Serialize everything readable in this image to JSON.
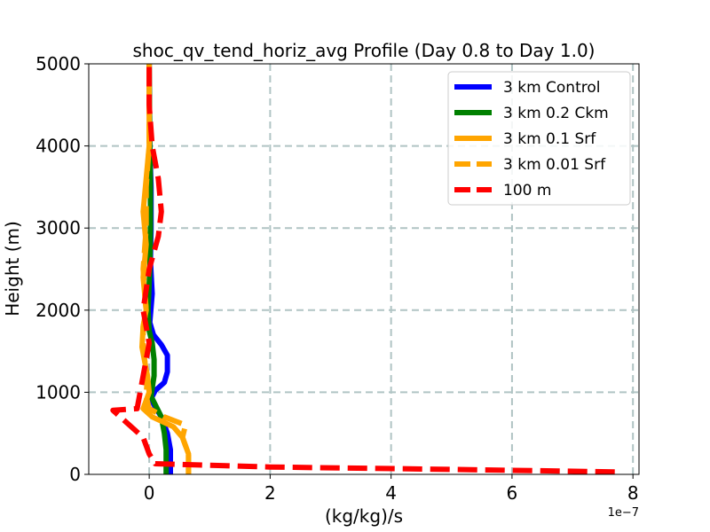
{
  "chart_data": {
    "type": "line",
    "title": "shoc_qv_tend_horiz_avg Profile (Day 0.8 to Day 1.0)",
    "xlabel": "(kg/kg)/s",
    "ylabel": "Height (m)",
    "x_offset_label": "1e−7",
    "xlim": [
      -1e-07,
      8.1e-07
    ],
    "ylim": [
      0,
      5000
    ],
    "xticks": [
      0,
      2e-07,
      4e-07,
      6e-07,
      8e-07
    ],
    "xtick_labels": [
      "0",
      "2",
      "4",
      "6",
      "8"
    ],
    "yticks": [
      0,
      1000,
      2000,
      3000,
      4000,
      5000
    ],
    "ytick_labels": [
      "0",
      "1000",
      "2000",
      "3000",
      "4000",
      "5000"
    ],
    "grid": true,
    "legend_position": "top-right",
    "series": [
      {
        "name": "3 km Control",
        "color": "#0000ff",
        "dash": "solid",
        "points": [
          [
            3.5e-08,
            0
          ],
          [
            3.5e-08,
            300
          ],
          [
            3e-08,
            500
          ],
          [
            2e-08,
            700
          ],
          [
            1e-08,
            820
          ],
          [
            3e-09,
            920
          ],
          [
            1e-08,
            1020
          ],
          [
            2.5e-08,
            1120
          ],
          [
            3e-08,
            1250
          ],
          [
            3e-08,
            1450
          ],
          [
            2e-08,
            1580
          ],
          [
            7e-09,
            1700
          ],
          [
            1e-09,
            1850
          ],
          [
            5e-09,
            2200
          ],
          [
            2e-09,
            2600
          ],
          [
            3e-09,
            3000
          ],
          [
            3e-09,
            3500
          ],
          [
            1e-09,
            4000
          ],
          [
            0,
            5000
          ]
        ]
      },
      {
        "name": "3 km 0.2 Ckm",
        "color": "#008000",
        "dash": "solid",
        "points": [
          [
            2.8e-08,
            0
          ],
          [
            2.8e-08,
            300
          ],
          [
            2.5e-08,
            500
          ],
          [
            2e-08,
            700
          ],
          [
            1e-08,
            850
          ],
          [
            3e-09,
            950
          ],
          [
            5e-09,
            1050
          ],
          [
            8e-09,
            1200
          ],
          [
            8e-09,
            1400
          ],
          [
            5e-09,
            1600
          ],
          [
            0,
            1750
          ],
          [
            -2e-09,
            2000
          ],
          [
            1e-09,
            2500
          ],
          [
            2e-09,
            3000
          ],
          [
            2e-09,
            3500
          ],
          [
            1e-09,
            4000
          ],
          [
            0,
            5000
          ]
        ]
      },
      {
        "name": "3 km 0.1 Srf",
        "color": "#ffa500",
        "dash": "solid",
        "points": [
          [
            6.5e-08,
            0
          ],
          [
            6.5e-08,
            250
          ],
          [
            5.5e-08,
            450
          ],
          [
            4e-08,
            580
          ],
          [
            5e-09,
            700
          ],
          [
            -1e-08,
            800
          ],
          [
            -5e-09,
            900
          ],
          [
            0,
            1000
          ],
          [
            -3e-09,
            1200
          ],
          [
            -1.2e-08,
            1550
          ],
          [
            -1e-08,
            1800
          ],
          [
            -5e-09,
            2000
          ],
          [
            -1e-08,
            2400
          ],
          [
            -5e-09,
            2800
          ],
          [
            -1e-08,
            3200
          ],
          [
            -5e-09,
            3600
          ],
          [
            0,
            4000
          ],
          [
            0,
            5000
          ]
        ]
      },
      {
        "name": "3 km 0.01 Srf",
        "color": "#ffa500",
        "dash": "dashed",
        "points": [
          [
            6.5e-08,
            0
          ],
          [
            6.5e-08,
            250
          ],
          [
            5.5e-08,
            450
          ],
          [
            6e-08,
            600
          ],
          [
            2.5e-08,
            700
          ],
          [
            0,
            800
          ],
          [
            -5e-09,
            950
          ],
          [
            -3e-09,
            1200
          ],
          [
            -1e-08,
            1500
          ],
          [
            -1e-08,
            1800
          ],
          [
            -5e-09,
            2000
          ],
          [
            -1e-08,
            2500
          ],
          [
            -5e-09,
            3000
          ],
          [
            -5e-09,
            3500
          ],
          [
            0,
            4000
          ],
          [
            0,
            5000
          ]
        ]
      },
      {
        "name": "100 m",
        "color": "#ff0000",
        "dash": "dashed",
        "points": [
          [
            7.7e-07,
            30
          ],
          [
            5e-07,
            60
          ],
          [
            2e-07,
            90
          ],
          [
            1e-08,
            130
          ],
          [
            0,
            250
          ],
          [
            -1e-08,
            450
          ],
          [
            -6e-08,
            780
          ],
          [
            -2e-08,
            800
          ],
          [
            -1.5e-08,
            1000
          ],
          [
            -1e-08,
            1200
          ],
          [
            0,
            1600
          ],
          [
            -1e-08,
            2000
          ],
          [
            0,
            2500
          ],
          [
            1.5e-08,
            2900
          ],
          [
            2e-08,
            3200
          ],
          [
            1.5e-08,
            3600
          ],
          [
            5e-09,
            4000
          ],
          [
            0,
            4500
          ],
          [
            0,
            5000
          ]
        ]
      }
    ]
  }
}
